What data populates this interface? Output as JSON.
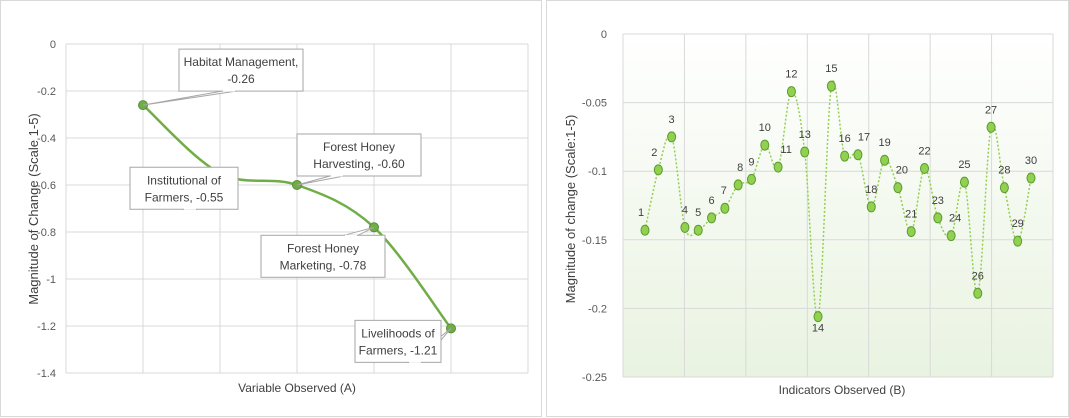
{
  "chart_data": [
    {
      "type": "line",
      "xlabel": "Variable Observed (A)",
      "ylabel": "Magnitude of Change (Scale 1-5)",
      "ylim": [
        -1.4,
        0
      ],
      "yticks": [
        "0",
        "-0.2",
        "-0.4",
        "-0.6",
        "-0.8",
        "-1",
        "-1.2",
        "-1.4"
      ],
      "grid": true,
      "line_color": "#70ad47",
      "points": [
        {
          "name": "Habitat Management",
          "value": -0.26,
          "label_line1": "Habitat Management,",
          "label_line2": "-0.26"
        },
        {
          "name": "Institutional of Farmers",
          "value": -0.55,
          "label_line1": "Institutional of",
          "label_line2": "Farmers, -0.55"
        },
        {
          "name": "Forest Honey Harvesting",
          "value": -0.6,
          "label_line1": "Forest Honey",
          "label_line2": "Harvesting, -0.60"
        },
        {
          "name": "Forest Honey Marketing",
          "value": -0.78,
          "label_line1": "Forest Honey",
          "label_line2": "Marketing, -0.78"
        },
        {
          "name": "Livelihoods of Farmers",
          "value": -1.21,
          "label_line1": "Livelihoods of",
          "label_line2": "Farmers, -1.21"
        }
      ]
    },
    {
      "type": "line",
      "xlabel": "Indicators Observed (B)",
      "ylabel": "Magnitude of change (Scale:1-5)",
      "ylim": [
        -0.25,
        0
      ],
      "yticks": [
        "0",
        "-0.05",
        "-0.1",
        "-0.15",
        "-0.2",
        "-0.25"
      ],
      "grid": true,
      "line_color": "#92d050",
      "x": [
        1,
        2,
        3,
        4,
        5,
        6,
        7,
        8,
        9,
        10,
        11,
        12,
        13,
        14,
        15,
        16,
        17,
        18,
        19,
        20,
        21,
        22,
        23,
        24,
        25,
        26,
        27,
        28,
        29,
        30
      ],
      "labels": [
        "1",
        "2",
        "3",
        "4",
        "5",
        "6",
        "7",
        "8",
        "9",
        "10",
        "11",
        "12",
        "13",
        "14",
        "15",
        "16",
        "17",
        "18",
        "19",
        "20",
        "21",
        "22",
        "23",
        "24",
        "25",
        "26",
        "27",
        "28",
        "29",
        "30"
      ],
      "values": [
        -0.143,
        -0.099,
        -0.075,
        -0.141,
        -0.143,
        -0.134,
        -0.127,
        -0.11,
        -0.106,
        -0.081,
        -0.097,
        -0.042,
        -0.086,
        -0.206,
        -0.038,
        -0.089,
        -0.088,
        -0.126,
        -0.092,
        -0.112,
        -0.144,
        -0.098,
        -0.134,
        -0.147,
        -0.108,
        -0.189,
        -0.068,
        -0.112,
        -0.151,
        -0.105
      ]
    }
  ]
}
